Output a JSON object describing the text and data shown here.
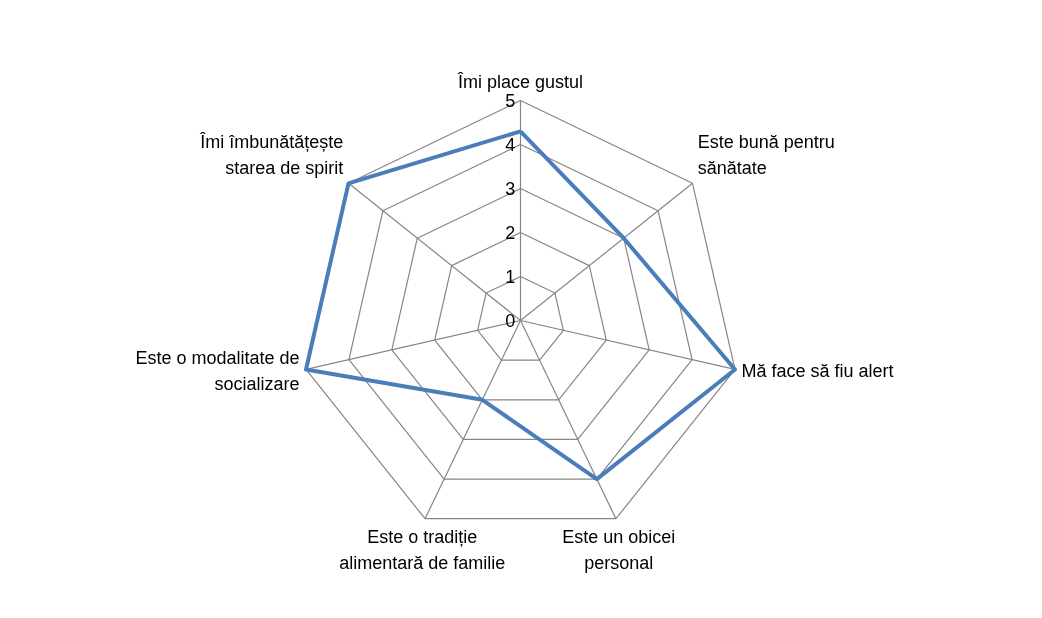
{
  "chart_data": {
    "type": "radar",
    "categories": [
      "Îmi place gustul",
      "Este bună pentru sănătate",
      "Mă face să fiu alert",
      "Este un obicei personal",
      "Este o tradiție alimentară de familie",
      "Este o modalitate de socializare",
      "Îmi îmbunătățește starea de spirit"
    ],
    "series": [
      {
        "color": "#4a7ebb",
        "values": [
          4.3,
          3.0,
          5,
          4,
          2,
          5,
          5
        ]
      }
    ],
    "ylim": [
      0,
      5
    ],
    "yticks": [
      0,
      1,
      2,
      3,
      4,
      5
    ],
    "grid": true
  }
}
